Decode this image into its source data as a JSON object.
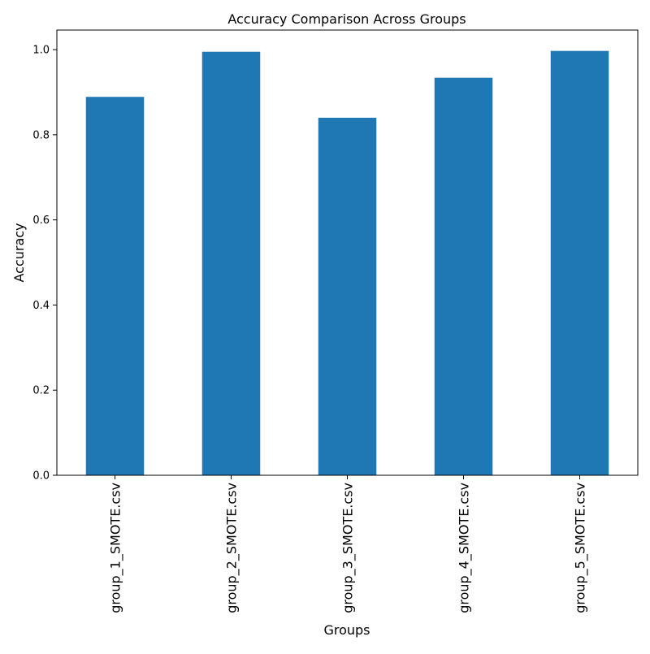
{
  "chart_data": {
    "type": "bar",
    "title": "Accuracy Comparison Across Groups",
    "xlabel": "Groups",
    "ylabel": "Accuracy",
    "categories": [
      "group_1_SMOTE.csv",
      "group_2_SMOTE.csv",
      "group_3_SMOTE.csv",
      "group_4_SMOTE.csv",
      "group_5_SMOTE.csv"
    ],
    "values": [
      0.889,
      0.995,
      0.84,
      0.934,
      0.997
    ],
    "ylim": [
      0,
      1.046
    ],
    "yticks": [
      "0.0",
      "0.2",
      "0.4",
      "0.6",
      "0.8",
      "1.0"
    ],
    "grid": false,
    "legend": "none",
    "bar_color": "#1f77b4"
  }
}
